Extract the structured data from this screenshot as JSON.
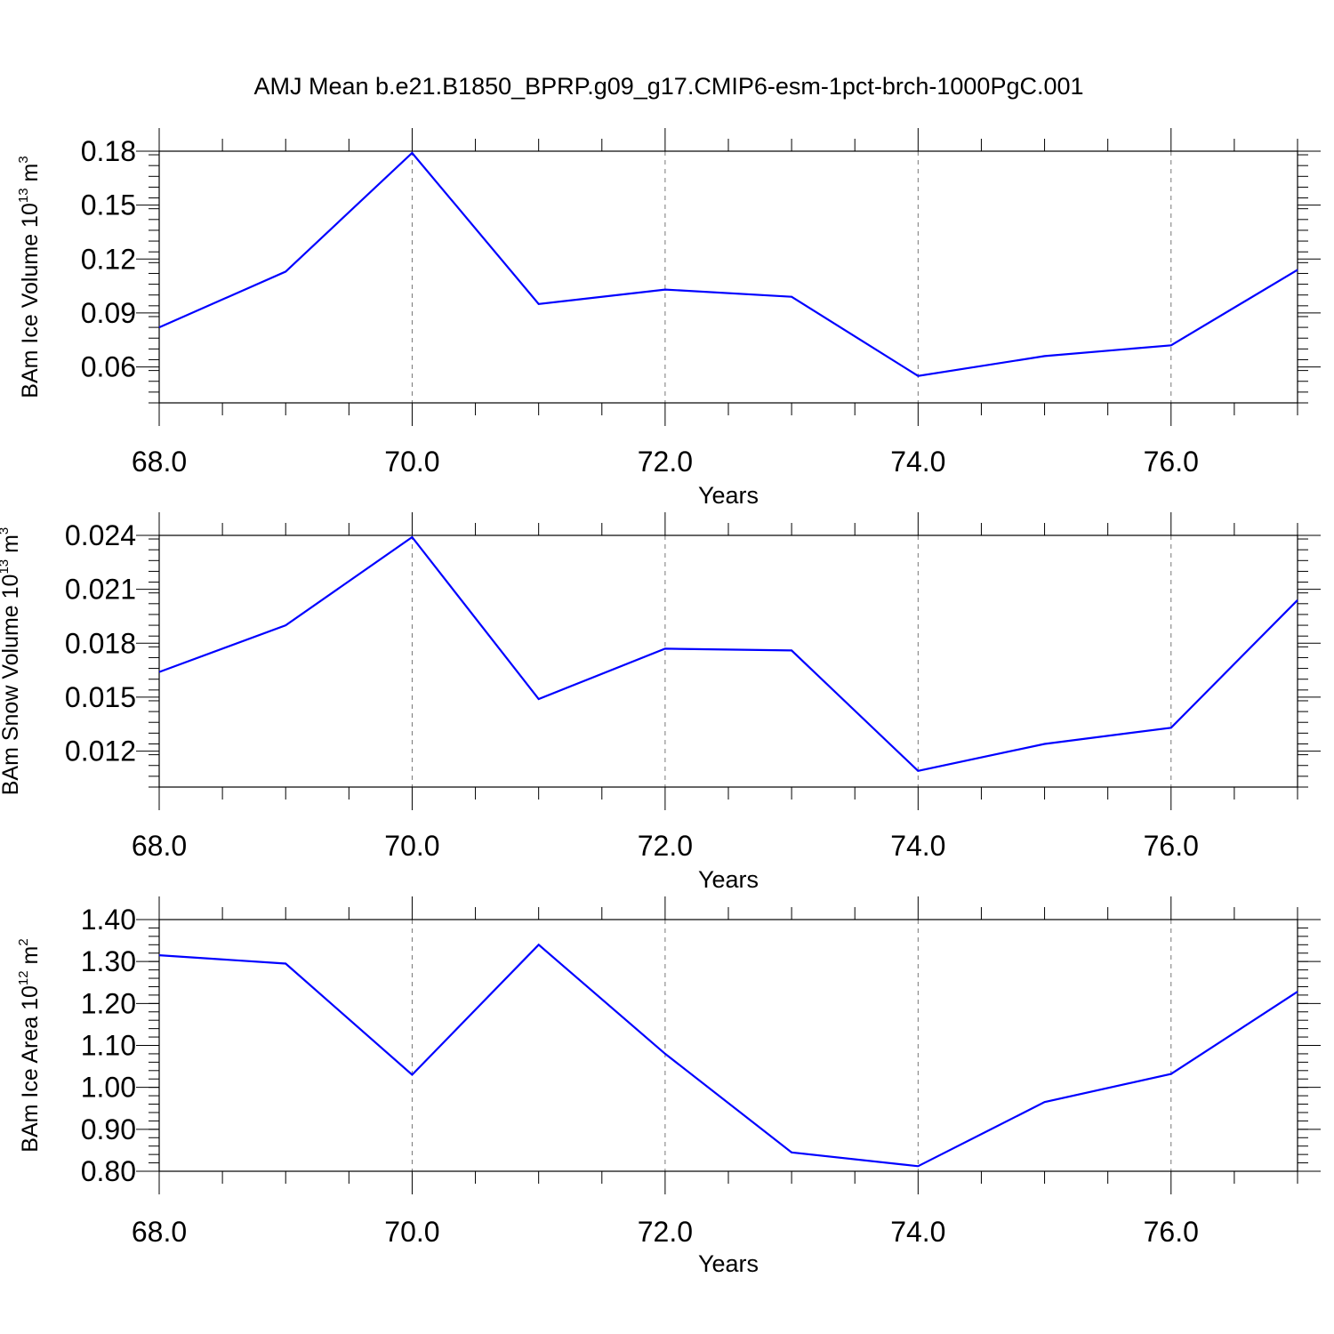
{
  "figure": {
    "title": "AMJ Mean b.e21.B1850_BPRP.g09_g17.CMIP6-esm-1pct-brch-1000PgC.001",
    "line_color": "#0000ff"
  },
  "chart_data": [
    {
      "type": "line",
      "title": "",
      "xlabel": "Years",
      "ylabel": {
        "text": "BAm Ice Volume 10",
        "exp": "13",
        "unit": " m",
        "unit_exp": "3"
      },
      "x": [
        68,
        69,
        70,
        71,
        72,
        73,
        74,
        75,
        76,
        77
      ],
      "values": [
        0.082,
        0.113,
        0.179,
        0.095,
        0.103,
        0.099,
        0.055,
        0.066,
        0.072,
        0.114
      ],
      "xlim": [
        68,
        77
      ],
      "ylim": [
        0.04,
        0.18
      ],
      "xticks": [
        "68.0",
        "70.0",
        "72.0",
        "74.0",
        "76.0"
      ],
      "yticks": [
        "0.06",
        "0.09",
        "0.12",
        "0.15",
        "0.18"
      ],
      "grid": "vertical dashed at major x ticks"
    },
    {
      "type": "line",
      "title": "",
      "xlabel": "Years",
      "ylabel": {
        "text": "BAm Snow Volume 10",
        "exp": "13",
        "unit": " m",
        "unit_exp": "3"
      },
      "x": [
        68,
        69,
        70,
        71,
        72,
        73,
        74,
        75,
        76,
        77
      ],
      "values": [
        0.0164,
        0.019,
        0.0239,
        0.0149,
        0.0177,
        0.0176,
        0.0109,
        0.0124,
        0.0133,
        0.0204
      ],
      "xlim": [
        68,
        77
      ],
      "ylim": [
        0.01,
        0.024
      ],
      "xticks": [
        "68.0",
        "70.0",
        "72.0",
        "74.0",
        "76.0"
      ],
      "yticks": [
        "0.012",
        "0.015",
        "0.018",
        "0.021",
        "0.024"
      ],
      "grid": "vertical dashed at major x ticks"
    },
    {
      "type": "line",
      "title": "",
      "xlabel": "Years",
      "ylabel": {
        "text": "BAm Ice Area 10",
        "exp": "12",
        "unit": " m",
        "unit_exp": "2"
      },
      "x": [
        68,
        69,
        70,
        71,
        72,
        73,
        74,
        75,
        76,
        77
      ],
      "values": [
        1.315,
        1.295,
        1.03,
        1.34,
        1.08,
        0.845,
        0.812,
        0.965,
        1.032,
        1.228
      ],
      "xlim": [
        68,
        77
      ],
      "ylim": [
        0.8,
        1.4
      ],
      "xticks": [
        "68.0",
        "70.0",
        "72.0",
        "74.0",
        "76.0"
      ],
      "yticks": [
        "0.80",
        "0.90",
        "1.00",
        "1.10",
        "1.20",
        "1.30",
        "1.40"
      ],
      "grid": "vertical dashed at major x ticks"
    }
  ]
}
